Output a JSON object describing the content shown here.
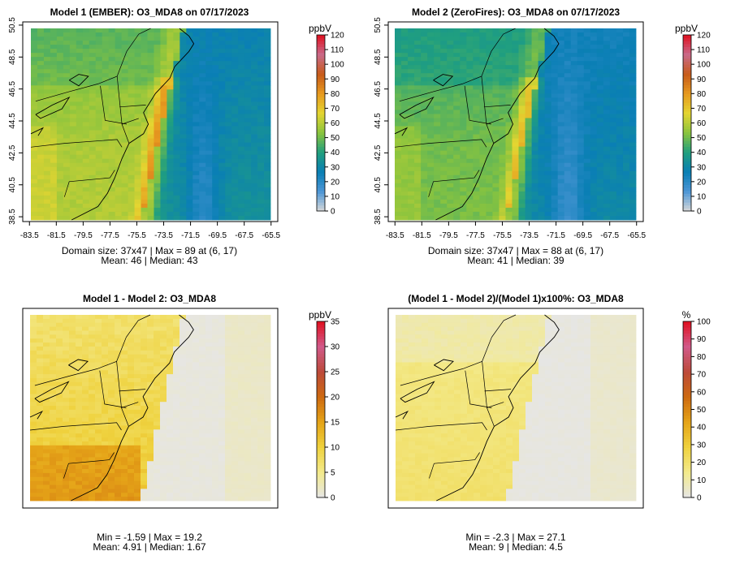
{
  "chart_data": [
    {
      "type": "heatmap",
      "title": "Model 1 (EMBER): O3_MDA8 on 07/17/2023",
      "x_ticks": [
        "-83.5",
        "-81.5",
        "-79.5",
        "-77.5",
        "-75.5",
        "-73.5",
        "-71.5",
        "-69.5",
        "-67.5",
        "-65.5"
      ],
      "y_ticks": [
        "38.5",
        "40.5",
        "42.5",
        "44.5",
        "46.5",
        "48.5",
        "50.5"
      ],
      "xlim": [
        -84,
        -65
      ],
      "ylim": [
        38.2,
        50.7
      ],
      "colorbar": {
        "unit": "ppbV",
        "ticks": [
          "0",
          "10",
          "20",
          "30",
          "40",
          "50",
          "60",
          "70",
          "80",
          "90",
          "100",
          "110",
          "120"
        ],
        "range": [
          0,
          120
        ]
      },
      "stats": [
        "Domain size: 37x47 | Max = 89 at (6, 17)",
        "Mean: 46 |  Median: 43"
      ],
      "field": "model1"
    },
    {
      "type": "heatmap",
      "title": "Model 2 (ZeroFires): O3_MDA8 on 07/17/2023",
      "x_ticks": [
        "-83.5",
        "-81.5",
        "-79.5",
        "-77.5",
        "-75.5",
        "-73.5",
        "-71.5",
        "-69.5",
        "-67.5",
        "-65.5"
      ],
      "y_ticks": [
        "38.5",
        "40.5",
        "42.5",
        "44.5",
        "46.5",
        "48.5",
        "50.5"
      ],
      "xlim": [
        -84,
        -65
      ],
      "ylim": [
        38.2,
        50.7
      ],
      "colorbar": {
        "unit": "ppbV",
        "ticks": [
          "0",
          "10",
          "20",
          "30",
          "40",
          "50",
          "60",
          "70",
          "80",
          "90",
          "100",
          "110",
          "120"
        ],
        "range": [
          0,
          120
        ]
      },
      "stats": [
        "Domain size: 37x47 | Max = 88 at (6, 17)",
        "Mean: 41 |  Median: 39"
      ],
      "field": "model2"
    },
    {
      "type": "heatmap",
      "title": "Model 1 - Model 2: O3_MDA8",
      "colorbar": {
        "unit": "ppbV",
        "ticks": [
          "0",
          "5",
          "10",
          "15",
          "20",
          "25",
          "30",
          "35"
        ],
        "range": [
          0,
          35
        ]
      },
      "stats": [
        "Min = -1.59 | Max = 19.2",
        "Mean: 4.91 |  Median: 1.67"
      ],
      "field": "diff"
    },
    {
      "type": "heatmap",
      "title": "(Model 1 - Model 2)/(Model 1)x100%: O3_MDA8",
      "colorbar": {
        "unit": "%",
        "ticks": [
          "0",
          "10",
          "20",
          "30",
          "40",
          "50",
          "60",
          "70",
          "80",
          "90",
          "100"
        ],
        "range": [
          0,
          100
        ]
      },
      "stats": [
        "Min = -2.3 | Max = 27.1",
        "Mean: 9 |  Median: 4.5"
      ],
      "field": "pct"
    }
  ],
  "colors": {
    "abs_scale": [
      "#d9d9d9",
      "#4d96d6",
      "#0a7fb5",
      "#209f7f",
      "#8ac43e",
      "#e4d531",
      "#e79a1f",
      "#c75b1a",
      "#c96a8a",
      "#e01020"
    ],
    "diff_scale": [
      "#e6e6e6",
      "#f3ea8c",
      "#efd23e",
      "#e5a418",
      "#cd6a10",
      "#bc4a3a",
      "#d15a8a",
      "#e01020"
    ]
  }
}
